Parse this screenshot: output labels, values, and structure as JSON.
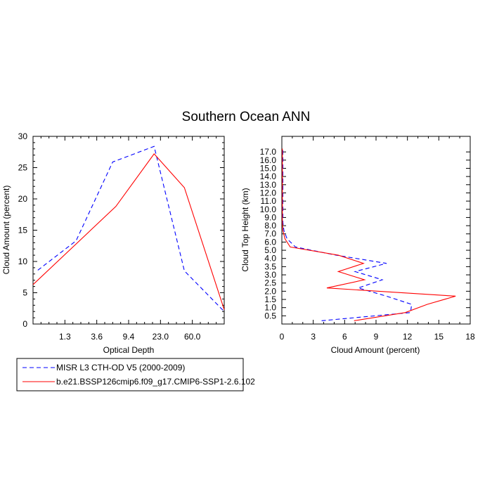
{
  "title": "Southern Ocean ANN",
  "chart_data": [
    {
      "type": "line",
      "xlabel": "Optical Depth",
      "ylabel": "Cloud Amount (percent)",
      "xscale": "categorical-bins",
      "xticklabels": [
        "1.3",
        "3.6",
        "9.4",
        "23.0",
        "60.0"
      ],
      "ylim": [
        0,
        30
      ],
      "yticks": [
        0,
        5,
        10,
        15,
        20,
        25,
        30
      ],
      "series": [
        {
          "name": "MISR L3 CTH-OD V5 (2000-2009)",
          "color": "#0000ff",
          "dash": "dashed",
          "x": [
            0.15,
            1.35,
            2.5,
            3.8,
            4.75,
            6.0
          ],
          "y": [
            8.6,
            13.3,
            25.9,
            28.4,
            8.5,
            2.0
          ]
        },
        {
          "name": "b.e21.BSSP126cmip6.f09_g17.CMIP6-SSP1-2.6.102",
          "color": "#ff0000",
          "dash": "solid",
          "x": [
            0.0,
            2.6,
            3.8,
            4.75,
            6.0
          ],
          "y": [
            6.3,
            18.8,
            27.2,
            21.8,
            2.3
          ]
        }
      ]
    },
    {
      "type": "line",
      "orientation": "vertical-profile",
      "xlabel": "Cloud Amount (percent)",
      "ylabel": "Cloud Top Height (km)",
      "xlim": [
        0,
        18
      ],
      "xticks": [
        0,
        3,
        6,
        9,
        12,
        15,
        18
      ],
      "yticklabels": [
        "0.5",
        "1.0",
        "1.5",
        "2.0",
        "2.5",
        "3.0",
        "3.5",
        "4.0",
        "5.0",
        "6.0",
        "7.0",
        "8.0",
        "9.0",
        "10.0",
        "11.0",
        "12.0",
        "13.0",
        "14.0",
        "15.0",
        "16.0",
        "17.0"
      ],
      "series": [
        {
          "name": "MISR L3 CTH-OD V5 (2000-2009)",
          "color": "#0000ff",
          "dash": "dashed",
          "level": [
            0,
            1,
            2,
            3,
            4,
            5,
            6,
            7,
            8,
            9,
            10,
            11,
            12,
            13,
            14,
            15,
            16,
            17,
            18,
            19,
            20,
            21
          ],
          "x": [
            3.8,
            12.3,
            12.4,
            10.0,
            7.3,
            9.6,
            7.0,
            10.0,
            5.2,
            1.3,
            0.5,
            0.2,
            0.1,
            0.1,
            0.1,
            0.1,
            0.1,
            0.1,
            0.1,
            0.1,
            0.1,
            0.1
          ]
        },
        {
          "name": "b.e21.BSSP126cmip6.f09_g17.CMIP6-SSP1-2.6.102",
          "color": "#ff0000",
          "dash": "solid",
          "level": [
            0,
            1,
            2,
            3,
            4,
            5,
            6,
            7,
            8,
            9,
            10,
            11,
            12,
            13,
            14,
            15,
            16,
            17,
            18,
            19,
            20,
            21
          ],
          "x": [
            6.9,
            11.8,
            13.9,
            16.6,
            4.3,
            7.9,
            5.4,
            7.8,
            5.4,
            0.8,
            0.3,
            0.1,
            0.05,
            0.05,
            0.05,
            0.05,
            0.05,
            0.05,
            0.05,
            0.05,
            0.05,
            0.05
          ]
        }
      ]
    }
  ],
  "legend": {
    "placement": "bottom-left",
    "entries": [
      "MISR L3 CTH-OD V5 (2000-2009)",
      "b.e21.BSSP126cmip6.f09_g17.CMIP6-SSP1-2.6.102"
    ]
  }
}
